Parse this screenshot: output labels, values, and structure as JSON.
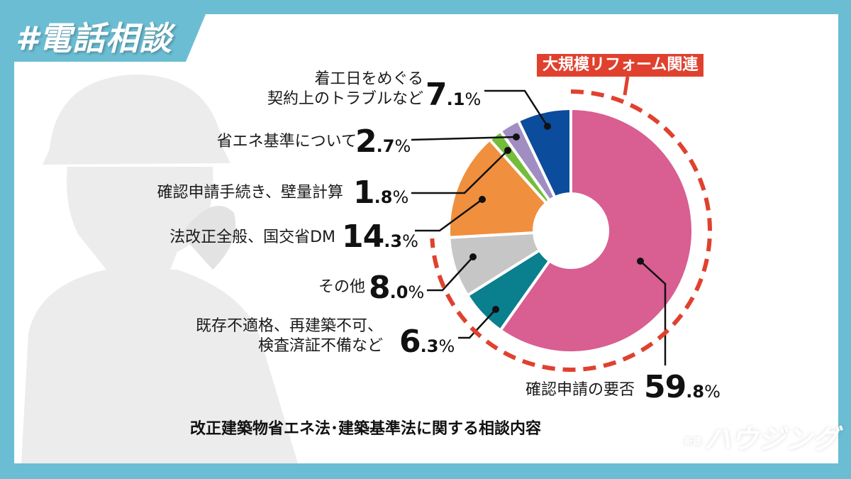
{
  "header": {
    "tag": "#電話相談"
  },
  "logo": {
    "text": "新建ハウジング"
  },
  "highlight": {
    "label": "大規模リフォーム関連",
    "color": "#e0412e"
  },
  "chart_data": {
    "type": "pie",
    "donut": true,
    "title": "改正建築物省エネ法･建築基準法に関する相談内容",
    "unit": "%",
    "slices": [
      {
        "label_lines": [
          "確認申請の要否"
        ],
        "value": 59.8,
        "pct_int": "59",
        "pct_dec": ".8",
        "color": "#d95e92",
        "group": "大規模リフォーム関連"
      },
      {
        "label_lines": [
          "既存不適格、再建築不可、",
          "検査済証不備など"
        ],
        "value": 6.3,
        "pct_int": "6",
        "pct_dec": ".3",
        "color": "#0a7f8e",
        "group": "大規模リフォーム関連"
      },
      {
        "label_lines": [
          "その他"
        ],
        "value": 8.0,
        "pct_int": "8",
        "pct_dec": ".0",
        "color": "#c6c6c6",
        "group": "大規模リフォーム関連"
      },
      {
        "label_lines": [
          "法改正全般、国交省DM"
        ],
        "value": 14.3,
        "pct_int": "14",
        "pct_dec": ".3",
        "color": "#f08f3e"
      },
      {
        "label_lines": [
          "確認申請手続き、壁量計算"
        ],
        "value": 1.8,
        "pct_int": "1",
        "pct_dec": ".8",
        "color": "#74bd3a"
      },
      {
        "label_lines": [
          "省エネ基準について"
        ],
        "value": 2.7,
        "pct_int": "2",
        "pct_dec": ".7",
        "color": "#a08dc2"
      },
      {
        "label_lines": [
          "着工日をめぐる",
          "契約上のトラブルなど"
        ],
        "value": 7.1,
        "pct_int": "7",
        "pct_dec": ".1",
        "color": "#0c4c9c"
      }
    ]
  }
}
